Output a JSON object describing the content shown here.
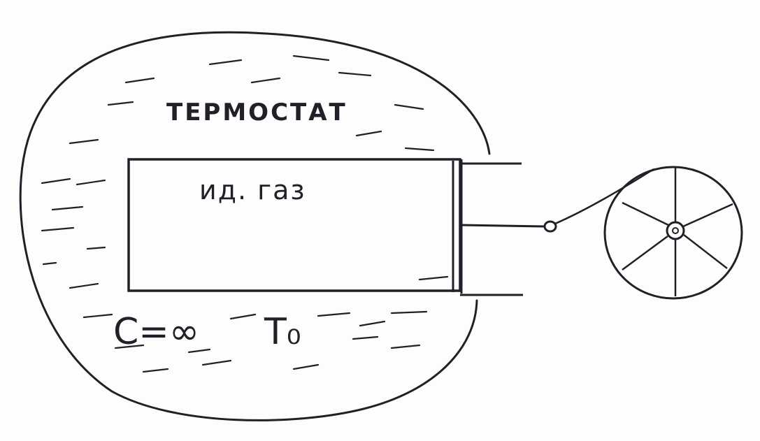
{
  "diagram": {
    "thermostat_label": "ТЕРМОСТАТ",
    "gas_label": "ид. газ",
    "heat_capacity_label": "C=∞",
    "temperature_label": "T₀"
  },
  "colors": {
    "ink": "#1f2128",
    "paper": "#fdfdfd"
  }
}
